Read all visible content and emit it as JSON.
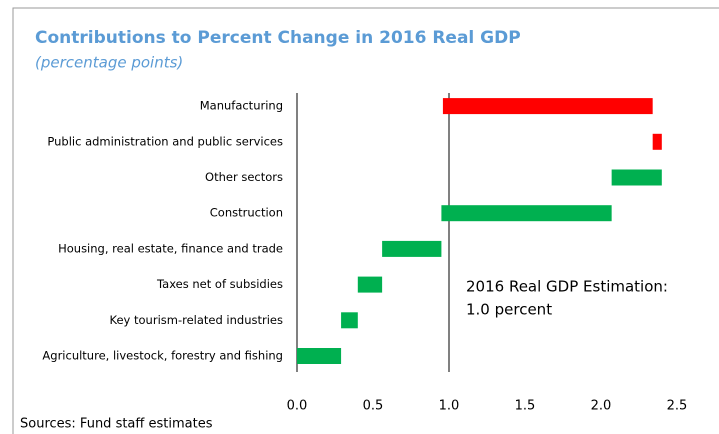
{
  "chart_data": {
    "type": "waterfall",
    "title": "Contributions to Percent Change in 2016 Real GDP",
    "subtitle": "(percentage points)",
    "categories": [
      "Agriculture, livestock, forestry and fishing",
      "Key tourism-related industries",
      "Taxes net of subsidies",
      "Housing, real estate, finance and trade",
      "Construction",
      "Other sectors",
      "Public administration and public services",
      "Manufacturing"
    ],
    "values": [
      0.29,
      0.11,
      0.16,
      0.39,
      1.12,
      0.33,
      -0.06,
      -1.38
    ],
    "increase_color": "#00b050",
    "decrease_color": "#ff0000",
    "xlim": [
      0,
      2.5
    ],
    "xticks": [
      {
        "value": 0,
        "label": "0.0"
      },
      0.5,
      {
        "value": 1,
        "label": "1.0"
      },
      1.5,
      {
        "value": 2,
        "label": "2.0"
      },
      2.5
    ],
    "reference_line": 1.0,
    "annotation": [
      "2016 Real GDP Estimation:",
      "1.0 percent"
    ],
    "source": "Sources: Fund staff estimates"
  }
}
